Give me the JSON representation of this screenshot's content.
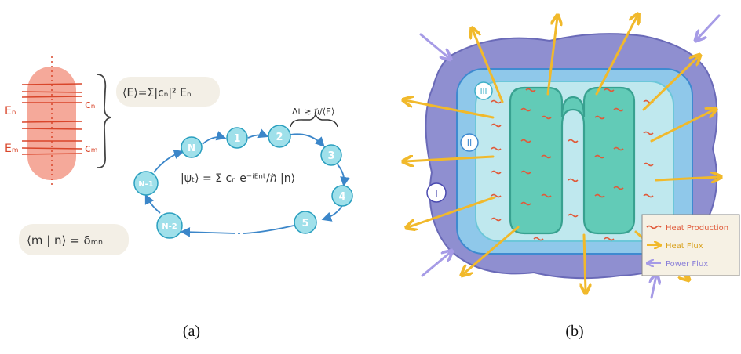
{
  "panel_a": {
    "caption": "(a)",
    "levels": {
      "E_n": "Eₙ",
      "E_m": "Eₘ",
      "c_n": "cₙ",
      "c_m": "cₘ"
    },
    "energy_expectation": "⟨E⟩=Σ|cₙ|² Eₙ",
    "time_state": "|ψₜ⟩ = Σ cₙ e⁻ⁱᴱⁿᵗ/ℏ |n⟩",
    "orthonormality": "⟨m | n⟩ = δₘₙ",
    "delta_t": "Δt ≳ ℏ/⟨E⟩",
    "nodes": [
      "1",
      "2",
      "3",
      "4",
      "5",
      "N-2",
      "N-1",
      "N"
    ]
  },
  "panel_b": {
    "caption": "(b)",
    "regions": [
      "I",
      "II",
      "III"
    ],
    "legend": {
      "heat_production": "Heat Production",
      "heat_flux": "Heat Flux",
      "power_flux": "Power Flux"
    }
  },
  "colors": {
    "level_band": "#f4a08f",
    "level_line": "#d9462b",
    "node_fill": "#9fe0ea",
    "node_stroke": "#2a9fbf",
    "arrow_blue": "#3b86c9",
    "outer_region": "#8f8fd0",
    "middle_region": "#8fc8ea",
    "inner_region": "#bfe8ee",
    "serpentine": "#58c8b2",
    "heat_arrow": "#f1b92b",
    "heat_squiggle": "#e05a3a",
    "power_arrow": "#a69be6"
  }
}
